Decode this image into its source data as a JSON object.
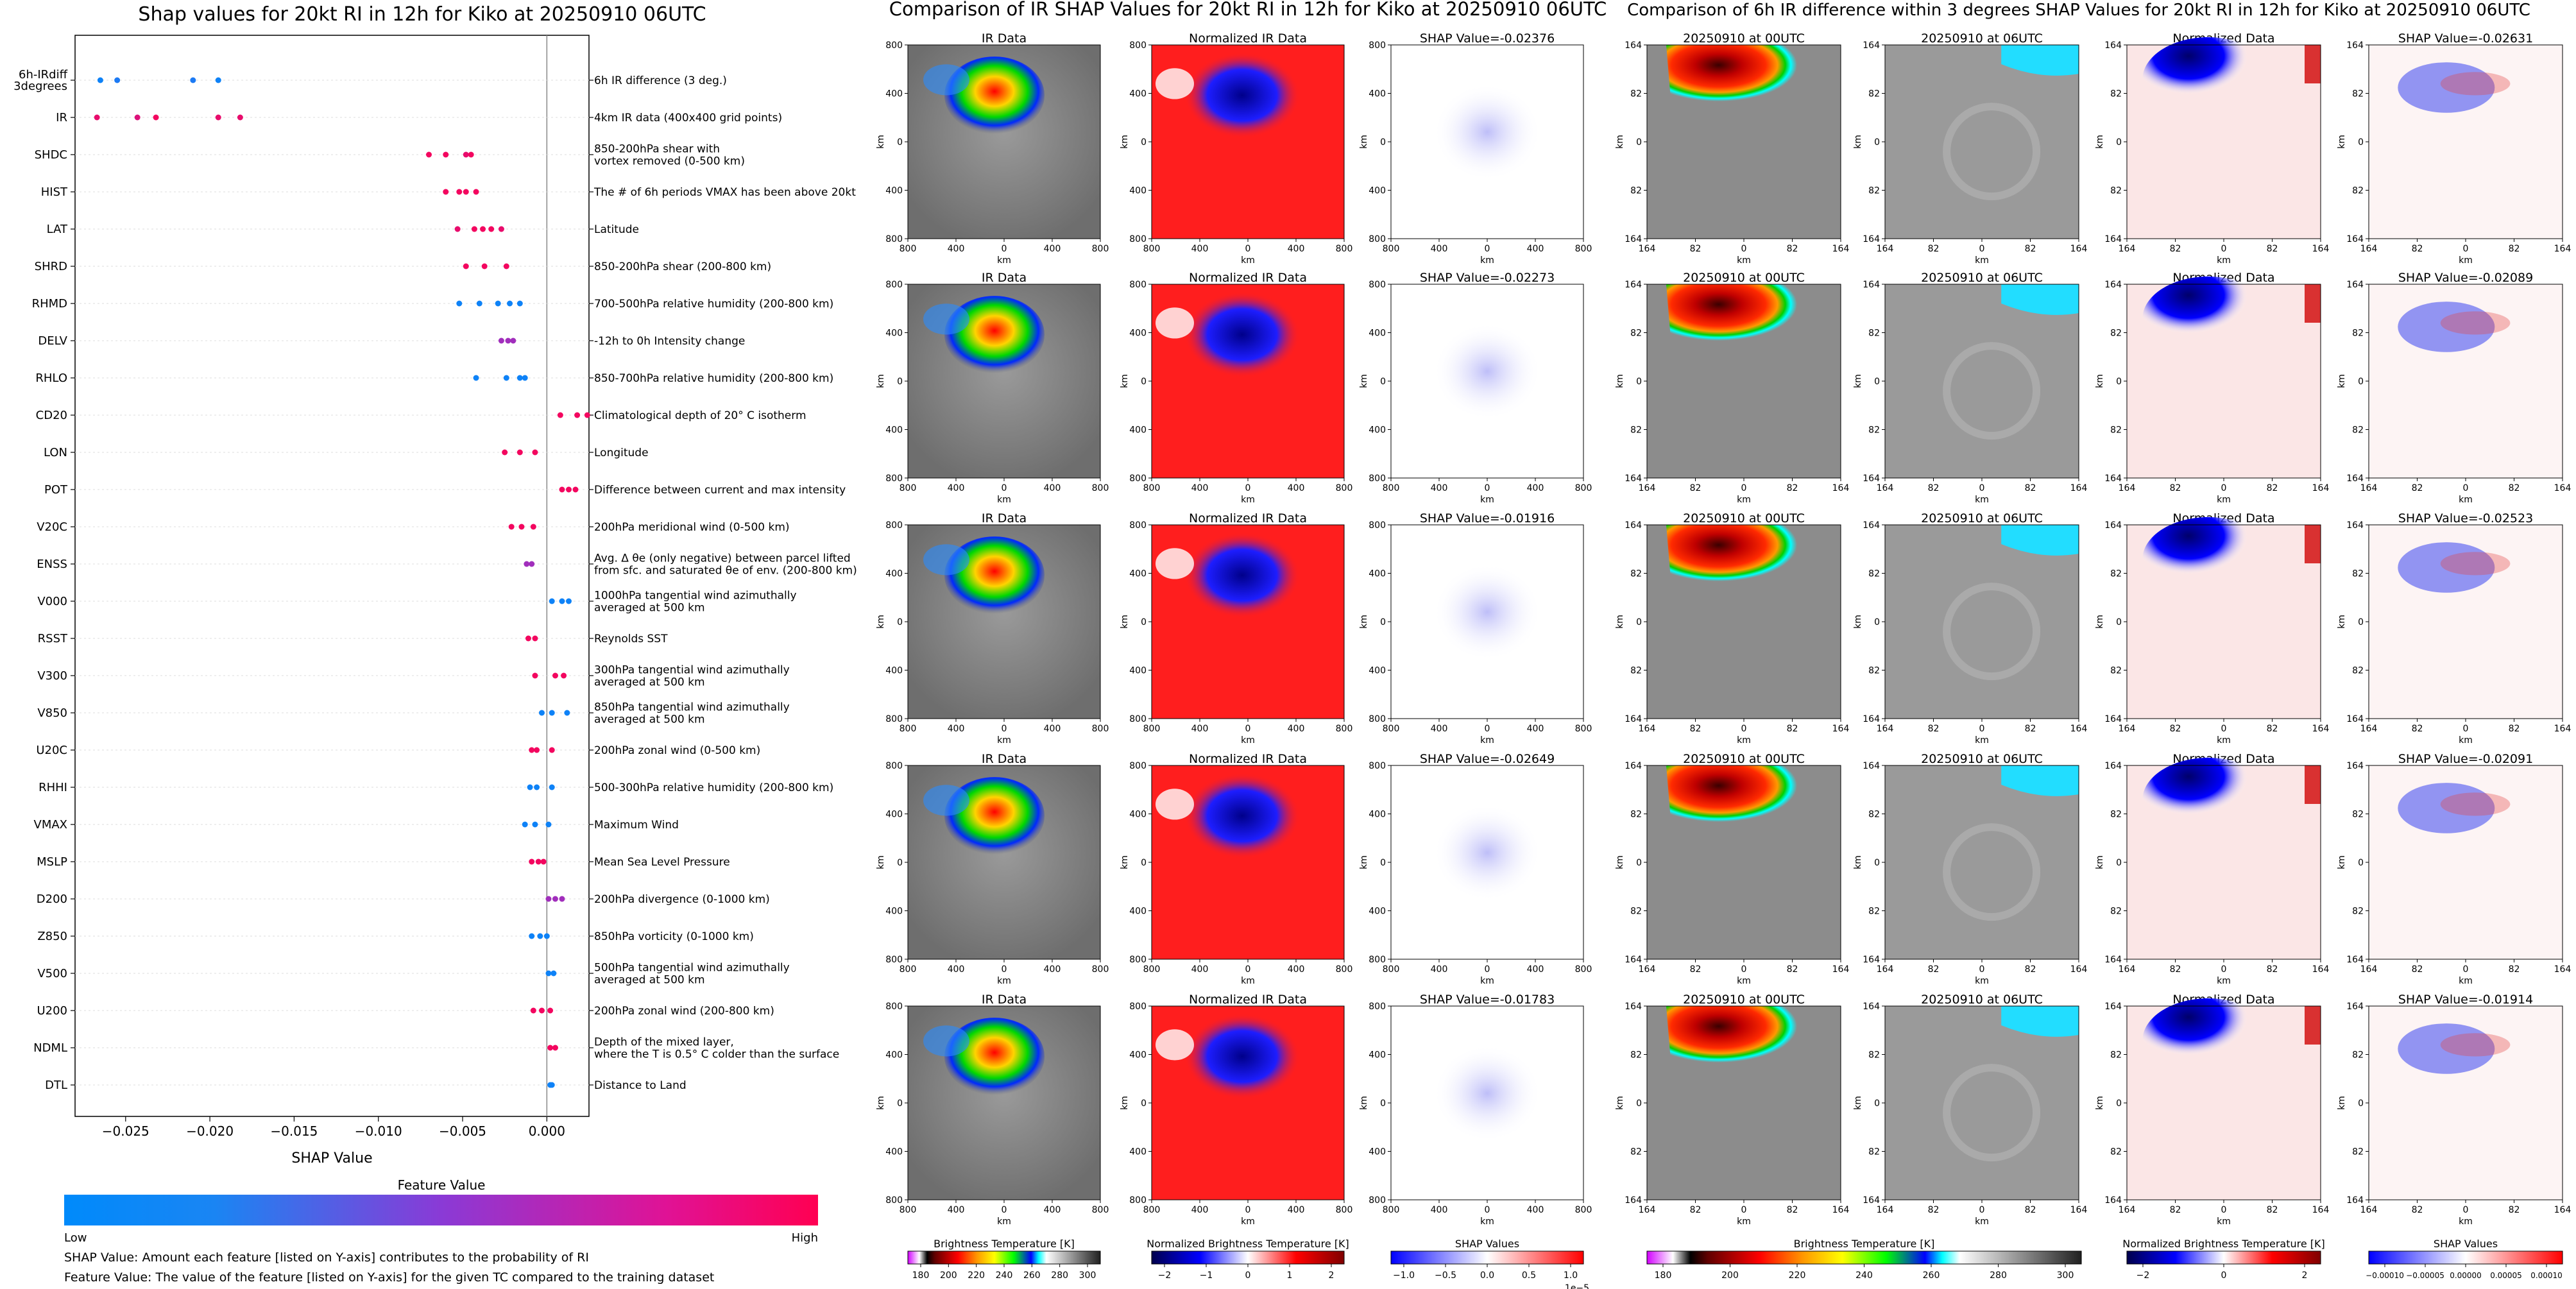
{
  "chart_data": [
    {
      "type": "scatter",
      "title": "Shap values for 20kt RI in 12h for Kiko at 20250910 06UTC",
      "xlabel": "SHAP Value",
      "xlim": [
        -0.028,
        0.0025
      ],
      "xticks": [
        "−0.025",
        "−0.020",
        "−0.015",
        "−0.010",
        "−0.005",
        "0.000"
      ],
      "xtick_values": [
        -0.025,
        -0.02,
        -0.015,
        -0.01,
        -0.005,
        0.0
      ],
      "legend_title": "Feature Value",
      "legend_low": "Low",
      "legend_high": "High",
      "note_1": "SHAP Value: Amount each feature [listed on Y-axis] contributes to the probability of RI",
      "note_2": "Feature Value: The value of the feature [listed on Y-axis] for the given TC compared to the training dataset",
      "features": [
        {
          "code": "6h-IRdiff\n3degrees",
          "desc": "6h IR difference (3 deg.)",
          "shap": [
            -0.0265,
            -0.0255,
            -0.021,
            -0.0195
          ],
          "fv": [
            0.05,
            0.1,
            0.1,
            0.05
          ]
        },
        {
          "code": "IR",
          "desc": "4km IR data (400x400 grid points)",
          "shap": [
            -0.0267,
            -0.0243,
            -0.0232,
            -0.0195,
            -0.0182
          ],
          "fv": [
            0.9,
            0.85,
            0.95,
            0.9,
            0.9
          ]
        },
        {
          "code": "SHDC",
          "desc": "850-200hPa shear with\nvortex removed (0-500 km)",
          "shap": [
            -0.007,
            -0.006,
            -0.0048,
            -0.0045
          ],
          "fv": [
            0.95,
            0.95,
            0.9,
            0.95
          ]
        },
        {
          "code": "HIST",
          "desc": "The # of 6h periods VMAX has been above 20kt",
          "shap": [
            -0.006,
            -0.0052,
            -0.0048,
            -0.0042
          ],
          "fv": [
            0.95,
            0.95,
            0.95,
            0.95
          ]
        },
        {
          "code": "LAT",
          "desc": "Latitude",
          "shap": [
            -0.0053,
            -0.0043,
            -0.0038,
            -0.0033,
            -0.0027
          ],
          "fv": [
            0.9,
            0.95,
            0.95,
            0.95,
            0.9
          ]
        },
        {
          "code": "SHRD",
          "desc": "850-200hPa shear (200-800 km)",
          "shap": [
            -0.0048,
            -0.0037,
            -0.0024
          ],
          "fv": [
            0.95,
            0.95,
            0.95
          ]
        },
        {
          "code": "RHMD",
          "desc": "700-500hPa relative humidity (200-800 km)",
          "shap": [
            -0.0052,
            -0.004,
            -0.0029,
            -0.0022,
            -0.0016
          ],
          "fv": [
            0.05,
            0.05,
            0.05,
            0.05,
            0.05
          ]
        },
        {
          "code": "DELV",
          "desc": "-12h to 0h Intensity change",
          "shap": [
            -0.0027,
            -0.0023,
            -0.002
          ],
          "fv": [
            0.6,
            0.6,
            0.6
          ]
        },
        {
          "code": "RHLO",
          "desc": "850-700hPa relative humidity (200-800 km)",
          "shap": [
            -0.0042,
            -0.0024,
            -0.0016,
            -0.0013
          ],
          "fv": [
            0.05,
            0.05,
            0.05,
            0.05
          ]
        },
        {
          "code": "CD20",
          "desc": "Climatological depth of 20° C isotherm",
          "shap": [
            0.0008,
            0.0018,
            0.0024
          ],
          "fv": [
            0.95,
            0.95,
            0.95
          ]
        },
        {
          "code": "LON",
          "desc": "Longitude",
          "shap": [
            -0.0025,
            -0.0016,
            -0.0007
          ],
          "fv": [
            0.95,
            0.95,
            0.95
          ]
        },
        {
          "code": "POT",
          "desc": "Difference between current and max intensity",
          "shap": [
            0.0009,
            0.0013,
            0.0017
          ],
          "fv": [
            0.95,
            0.95,
            0.95
          ]
        },
        {
          "code": "V20C",
          "desc": "200hPa meridional wind (0-500 km)",
          "shap": [
            -0.0021,
            -0.0015,
            -0.0008
          ],
          "fv": [
            0.95,
            0.95,
            0.95
          ]
        },
        {
          "code": "ENSS",
          "desc": "Avg. Δ θe (only negative) between parcel lifted\nfrom sfc. and saturated θe of env. (200-800 km)",
          "shap": [
            -0.0012,
            -0.0009
          ],
          "fv": [
            0.6,
            0.6
          ]
        },
        {
          "code": "V000",
          "desc": "1000hPa tangential wind azimuthally\naveraged at 500 km",
          "shap": [
            0.0003,
            0.0009,
            0.0013
          ],
          "fv": [
            0.05,
            0.05,
            0.05
          ]
        },
        {
          "code": "RSST",
          "desc": "Reynolds SST",
          "shap": [
            -0.0011,
            -0.0007
          ],
          "fv": [
            0.95,
            0.95
          ]
        },
        {
          "code": "V300",
          "desc": "300hPa tangential wind azimuthally\naveraged at 500 km",
          "shap": [
            -0.0007,
            0.0005,
            0.001
          ],
          "fv": [
            0.95,
            0.95,
            0.95
          ]
        },
        {
          "code": "V850",
          "desc": "850hPa tangential wind azimuthally\naveraged at 500 km",
          "shap": [
            -0.0003,
            0.0003,
            0.0012
          ],
          "fv": [
            0.05,
            0.05,
            0.05
          ]
        },
        {
          "code": "U20C",
          "desc": "200hPa zonal wind (0-500 km)",
          "shap": [
            -0.0009,
            -0.0006,
            0.0003
          ],
          "fv": [
            0.95,
            0.95,
            0.95
          ]
        },
        {
          "code": "RHHI",
          "desc": "500-300hPa relative humidity (200-800 km)",
          "shap": [
            -0.001,
            -0.0006,
            0.0003
          ],
          "fv": [
            0.05,
            0.05,
            0.05
          ]
        },
        {
          "code": "VMAX",
          "desc": "Maximum Wind",
          "shap": [
            -0.0013,
            -0.0007,
            0.0001
          ],
          "fv": [
            0.05,
            0.05,
            0.05
          ]
        },
        {
          "code": "MSLP",
          "desc": "Mean Sea Level Pressure",
          "shap": [
            -0.0009,
            -0.0005,
            -0.0002
          ],
          "fv": [
            0.95,
            0.95,
            0.95
          ]
        },
        {
          "code": "D200",
          "desc": "200hPa divergence (0-1000 km)",
          "shap": [
            0.0001,
            0.0005,
            0.0009
          ],
          "fv": [
            0.6,
            0.6,
            0.6
          ]
        },
        {
          "code": "Z850",
          "desc": "850hPa vorticity (0-1000 km)",
          "shap": [
            -0.0009,
            -0.0004,
            0.0
          ],
          "fv": [
            0.05,
            0.05,
            0.05
          ]
        },
        {
          "code": "V500",
          "desc": "500hPa tangential wind azimuthally\naveraged at 500 km",
          "shap": [
            0.0001,
            0.0004
          ],
          "fv": [
            0.05,
            0.05
          ]
        },
        {
          "code": "U200",
          "desc": "200hPa zonal wind (200-800 km)",
          "shap": [
            -0.0008,
            -0.0003,
            0.0002
          ],
          "fv": [
            0.95,
            0.95,
            0.95
          ]
        },
        {
          "code": "NDML",
          "desc": "Depth of the mixed layer,\nwhere the T is 0.5° C colder than the surface",
          "shap": [
            0.0002,
            0.0005
          ],
          "fv": [
            0.95,
            0.95
          ]
        },
        {
          "code": "DTL",
          "desc": "Distance to Land",
          "shap": [
            0.0002,
            0.0003
          ],
          "fv": [
            0.05,
            0.05
          ]
        }
      ]
    },
    {
      "type": "heatmap",
      "title": "Comparison of IR SHAP Values for 20kt RI in 12h for Kiko at 20250910 06UTC",
      "col_titles": [
        "IR Data",
        "Normalized IR Data"
      ],
      "shap_titles": [
        "SHAP Value=-0.02376",
        "SHAP Value=-0.02273",
        "SHAP Value=-0.01916",
        "SHAP Value=-0.02649",
        "SHAP Value=-0.01783"
      ],
      "axis_label": "km",
      "tick_labels": [
        "800",
        "400",
        "0",
        "400",
        "800"
      ],
      "colorbars": [
        {
          "label": "Brightness Temperature [K]",
          "ticks": [
            "180",
            "200",
            "220",
            "240",
            "260",
            "280",
            "300"
          ]
        },
        {
          "label": "Normalized Brightness Temperature [K]",
          "ticks": [
            "−2",
            "−1",
            "0",
            "1",
            "2"
          ]
        },
        {
          "label": "SHAP Values",
          "ticks": [
            "−1.0",
            "−0.5",
            "0.0",
            "0.5",
            "1.0"
          ],
          "offset": "1e−5"
        }
      ]
    },
    {
      "type": "heatmap",
      "title": "Comparison of 6h IR difference within 3 degrees SHAP Values for 20kt RI in 12h for Kiko at 20250910 06UTC",
      "col_titles": [
        "20250910 at 00UTC",
        "20250910 at 06UTC",
        "Normalized Data"
      ],
      "shap_titles": [
        "SHAP Value=-0.02631",
        "SHAP Value=-0.02089",
        "SHAP Value=-0.02523",
        "SHAP Value=-0.02091",
        "SHAP Value=-0.01914"
      ],
      "axis_label": "km",
      "tick_labels": [
        "164",
        "82",
        "0",
        "82",
        "164"
      ],
      "colorbars": [
        {
          "label": "Brightness Temperature [K]",
          "ticks": [
            "180",
            "200",
            "220",
            "240",
            "260",
            "280",
            "300"
          ]
        },
        {
          "label": "Normalized Brightness Temperature [K]",
          "ticks": [
            "−2",
            "0",
            "2"
          ]
        },
        {
          "label": "SHAP Values",
          "ticks": [
            "−0.00010",
            "−0.00005",
            "0.00000",
            "0.00005",
            "0.00010"
          ]
        }
      ]
    }
  ]
}
